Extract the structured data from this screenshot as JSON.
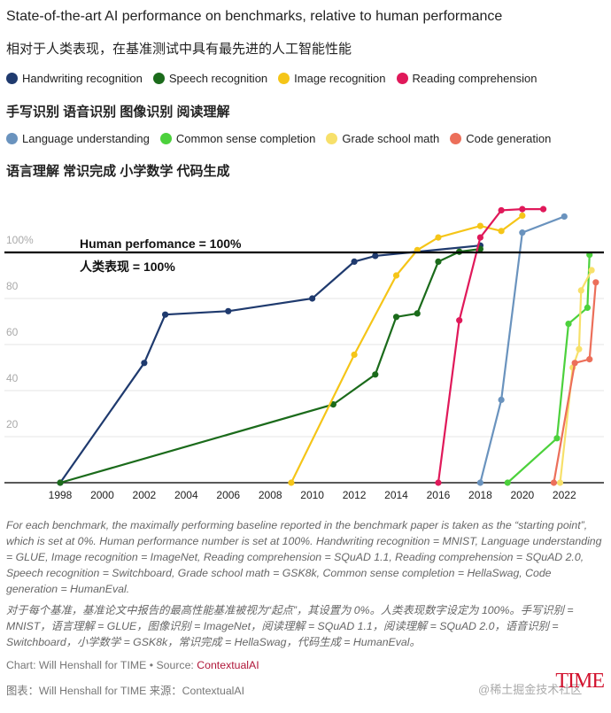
{
  "title": "State-of-the-art AI performance on benchmarks, relative to human performance",
  "title_zh": "相对于人类表现，在基准测试中具有最先进的人工智能性能",
  "legend_row1_zh": "手写识别 语音识别 图像识别 阅读理解",
  "legend_row2_zh": "语言理解 常识完成 小学数学 代码生成",
  "chart_data": {
    "type": "line",
    "xlim": [
      1998,
      2023.6
    ],
    "ylim": [
      0,
      120
    ],
    "x_ticks": [
      "1998",
      "2000",
      "2002",
      "2004",
      "2006",
      "2008",
      "2010",
      "2012",
      "2014",
      "2016",
      "2018",
      "2020",
      "2022"
    ],
    "y_ticks": [
      {
        "v": 20,
        "label": "20"
      },
      {
        "v": 40,
        "label": "40"
      },
      {
        "v": 60,
        "label": "60"
      },
      {
        "v": 80,
        "label": "80"
      },
      {
        "v": 100,
        "label": "100%"
      }
    ],
    "grid": true,
    "reference_line": {
      "value": 100,
      "label": "Human perfomance = 100%",
      "label_zh": "人类表现 = 100%"
    },
    "series": [
      {
        "name": "Handwriting recognition",
        "color": "#1f3a6e",
        "points": [
          [
            1998,
            0
          ],
          [
            2002,
            52
          ],
          [
            2003,
            73
          ],
          [
            2006,
            74.5
          ],
          [
            2010,
            80
          ],
          [
            2012,
            96
          ],
          [
            2013,
            98.5
          ],
          [
            2018,
            103
          ]
        ]
      },
      {
        "name": "Speech recognition",
        "color": "#1b6b1b",
        "points": [
          [
            1998,
            0
          ],
          [
            2011,
            34
          ],
          [
            2013,
            47
          ],
          [
            2014,
            72
          ],
          [
            2015,
            73.5
          ],
          [
            2016,
            96
          ],
          [
            2017,
            100.3
          ],
          [
            2018,
            101.5
          ]
        ]
      },
      {
        "name": "Image recognition",
        "color": "#f5c518",
        "points": [
          [
            2009,
            0
          ],
          [
            2012,
            55.6
          ],
          [
            2014,
            90
          ],
          [
            2015,
            101
          ],
          [
            2016,
            106.5
          ],
          [
            2018,
            111.5
          ],
          [
            2019,
            109.3
          ],
          [
            2020,
            116
          ]
        ]
      },
      {
        "name": "Reading comprehension",
        "color": "#e0195a",
        "points": [
          [
            2016,
            0
          ],
          [
            2017,
            70.5
          ],
          [
            2018,
            106.5
          ],
          [
            2019,
            118.3
          ],
          [
            2020,
            118.8
          ],
          [
            2021,
            118.8
          ]
        ]
      },
      {
        "name": "Language understanding",
        "color": "#6a93be",
        "points": [
          [
            2018,
            0
          ],
          [
            2019,
            36
          ],
          [
            2020,
            108.6
          ],
          [
            2022,
            115.6
          ]
        ]
      },
      {
        "name": "Common sense completion",
        "color": "#4cd13c",
        "points": [
          [
            2019.3,
            0
          ],
          [
            2021.65,
            19.3
          ],
          [
            2022.2,
            69
          ],
          [
            2023.1,
            76
          ],
          [
            2023.2,
            99
          ]
        ]
      },
      {
        "name": "Grade school math",
        "color": "#f7e06a",
        "points": [
          [
            2021.8,
            0
          ],
          [
            2022.4,
            50
          ],
          [
            2022.7,
            58
          ],
          [
            2022.8,
            83.5
          ],
          [
            2023.3,
            92.3
          ]
        ]
      },
      {
        "name": "Code generation",
        "color": "#ec6f5a",
        "points": [
          [
            2021.5,
            0
          ],
          [
            2022.5,
            52
          ],
          [
            2023.2,
            53.6
          ],
          [
            2023.5,
            87
          ]
        ]
      }
    ]
  },
  "footnote": "For each benchmark, the maximally performing baseline reported in the benchmark paper is taken as the “starting point”, which is set at 0%. Human performance number is set at 100%. Handwriting recognition = MNIST, Language understanding = GLUE, Image recognition = ImageNet, Reading comprehension = SQuAD 1.1, Reading comprehension = SQuAD 2.0, Speech recognition = Switchboard, Grade school math = GSK8k, Common sense completion = HellaSwag, Code generation = HumanEval.",
  "footnote_zh": "对于每个基准，基准论文中报告的最高性能基准被视为“起点”，其设置为 0%。人类表现数字设定为 100%。手写识别 = MNIST，语言理解 = GLUE，图像识别 = ImageNet，阅读理解 = SQuAD 1.1，阅读理解 = SQuAD 2.0，语音识别 = Switchboard，小学数学 = GSK8k，常识完成 = HellaSwag，代码生成 = HumanEval。",
  "credit": {
    "prefix": "Chart: Will Henshall for TIME • Source: ",
    "source": "ContextualAI"
  },
  "credit_zh": "图表：Will Henshall for TIME 来源：ContextualAI",
  "logo": "TIME",
  "watermark": "@稀土掘金技术社区"
}
